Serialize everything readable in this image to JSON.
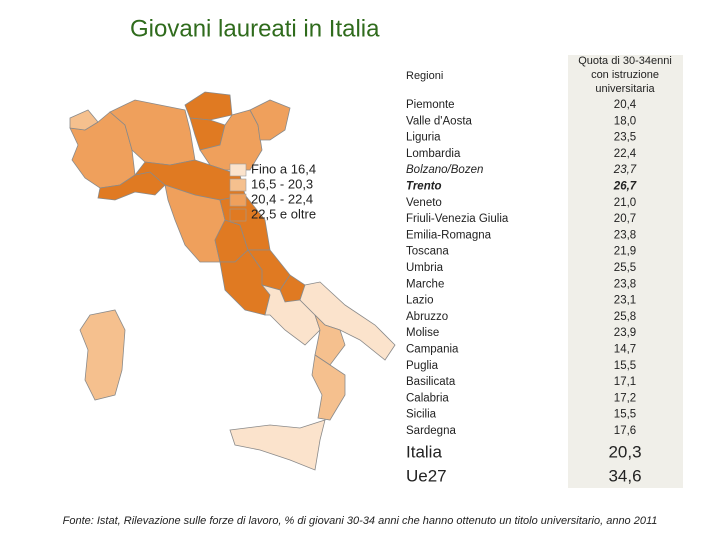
{
  "title": "Giovani laureati in Italia",
  "legend": [
    {
      "label": "Fino a 16,4",
      "color": "#fbe3cc"
    },
    {
      "label": "16,5 - 20,3",
      "color": "#f5c08e",
      "min": 16.5
    },
    {
      "label": "20,4 - 22,4",
      "color": "#efa05c",
      "min": 20.4
    },
    {
      "label": "22,5 e oltre",
      "color": "#e07a22",
      "min": 22.5
    }
  ],
  "table": {
    "header": [
      "Regioni",
      [
        "Quota di 30-34enni",
        "con istruzione",
        "universitaria"
      ]
    ],
    "rows": [
      {
        "region": "Piemonte",
        "value": {
          "value": 20.4,
          "label": "20,4"
        }
      },
      {
        "region": "Valle d'Aosta",
        "value": {
          "value": 18.0,
          "label": "18,0"
        }
      },
      {
        "region": "Liguria",
        "value": {
          "value": 23.5,
          "label": "23,5"
        }
      },
      {
        "region": "Lombardia",
        "value": {
          "value": 22.4,
          "label": "22,4"
        }
      },
      {
        "region": "Bolzano/Bozen",
        "value": {
          "value": 23.7,
          "label": "23,7"
        }
      },
      {
        "region": "Trento",
        "value": {
          "value": 26.7,
          "label": "26,7"
        }
      },
      {
        "region": "Veneto",
        "value": {
          "value": 21.0,
          "label": "21,0"
        }
      },
      {
        "region": "Friuli-Venezia Giulia",
        "value": {
          "value": 20.7,
          "label": "20,7"
        }
      },
      {
        "region": "Emilia-Romagna",
        "value": {
          "value": 23.8,
          "label": "23,8"
        }
      },
      {
        "region": "Toscana",
        "value": {
          "value": 21.9,
          "label": "21,9"
        }
      },
      {
        "region": "Umbria",
        "value": {
          "value": 25.5,
          "label": "25,5"
        }
      },
      {
        "region": "Marche",
        "value": {
          "value": 23.8,
          "label": "23,8"
        }
      },
      {
        "region": "Lazio",
        "value": {
          "value": 23.1,
          "label": "23,1"
        }
      },
      {
        "region": "Abruzzo",
        "value": {
          "value": 25.8,
          "label": "25,8"
        }
      },
      {
        "region": "Molise",
        "value": {
          "value": 23.9,
          "label": "23,9"
        }
      },
      {
        "region": "Campania",
        "value": {
          "value": 14.7,
          "label": "14,7"
        }
      },
      {
        "region": "Puglia",
        "value": {
          "value": 15.5,
          "label": "15,5"
        }
      },
      {
        "region": "Basilicata",
        "value": {
          "value": 17.1,
          "label": "17,1"
        }
      },
      {
        "region": "Calabria",
        "value": {
          "value": 17.2,
          "label": "17,2"
        }
      },
      {
        "region": "Sicilia",
        "value": {
          "value": 15.5,
          "label": "15,5"
        }
      },
      {
        "region": "Sardegna",
        "value": {
          "value": 17.6,
          "label": "17,6"
        }
      }
    ],
    "totals": [
      {
        "region": "Italia",
        "value": {
          "value": 20.3,
          "label": "20,3"
        }
      },
      {
        "region": "Ue27",
        "value": {
          "value": 34.6,
          "label": "34,6"
        }
      }
    ]
  },
  "source": "Fonte: Istat, Rilevazione sulle forze di lavoro, % di giovani 30-34 anni che hanno ottenuto un titolo universitario, anno 2011"
}
